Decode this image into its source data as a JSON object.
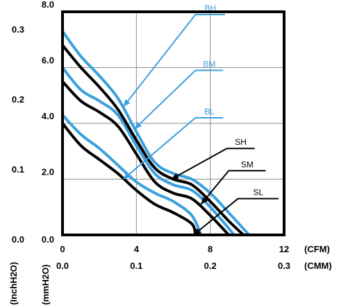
{
  "chart_data": {
    "type": "line",
    "title": "",
    "x_axis": {
      "primary": {
        "unit": "(CFM)",
        "range": [
          0,
          12
        ],
        "ticks": [
          "0",
          "4",
          "8",
          "12"
        ]
      },
      "secondary": {
        "unit": "(CMM)",
        "ticks": [
          "0.0",
          "0.1",
          "0.2",
          "0.3"
        ]
      }
    },
    "y_axis": {
      "primary": {
        "unit": "(mmH2O)",
        "range": [
          0,
          8
        ],
        "ticks": [
          "0.0",
          "2.0",
          "4.0",
          "6.0",
          "8.0"
        ]
      },
      "secondary": {
        "unit": "(InchH2O)",
        "ticks": [
          "0.0",
          "0.1",
          "0.2",
          "0.3"
        ]
      }
    },
    "grid": true,
    "legend": "inline-callouts",
    "series": [
      {
        "name": "BH",
        "color": "#3ba0de",
        "x": [
          0,
          1,
          2,
          3,
          4,
          5,
          6,
          7,
          8,
          9,
          10.1
        ],
        "y": [
          7.3,
          6.4,
          5.7,
          4.9,
          3.7,
          2.6,
          2.2,
          2.0,
          1.5,
          0.8,
          0
        ]
      },
      {
        "name": "BM",
        "color": "#3ba0de",
        "x": [
          0,
          1,
          2,
          3,
          4,
          5,
          6,
          7,
          8,
          9.3
        ],
        "y": [
          6.0,
          5.2,
          4.8,
          4.3,
          3.2,
          2.2,
          1.8,
          1.6,
          1.0,
          0
        ]
      },
      {
        "name": "BL",
        "color": "#3ba0de",
        "x": [
          0,
          1,
          2,
          3,
          4,
          5,
          6,
          7,
          7.5
        ],
        "y": [
          4.3,
          3.6,
          3.1,
          2.5,
          1.9,
          1.5,
          1.2,
          0.7,
          0
        ]
      },
      {
        "name": "SH",
        "color": "#000000",
        "x": [
          0,
          1,
          2,
          3,
          4,
          5,
          6,
          7,
          8,
          9,
          9.8
        ],
        "y": [
          6.8,
          6.0,
          5.3,
          4.5,
          3.4,
          2.4,
          2.0,
          1.8,
          1.2,
          0.5,
          0
        ]
      },
      {
        "name": "SM",
        "color": "#000000",
        "x": [
          0,
          1,
          2,
          3,
          4,
          5,
          6,
          7,
          8,
          9.0
        ],
        "y": [
          5.5,
          4.8,
          4.4,
          3.9,
          2.9,
          1.9,
          1.5,
          1.3,
          0.7,
          0
        ]
      },
      {
        "name": "SL",
        "color": "#000000",
        "x": [
          0,
          1,
          2,
          3,
          4,
          5,
          6,
          7,
          7.2
        ],
        "y": [
          4.0,
          3.2,
          2.7,
          2.2,
          1.6,
          1.1,
          0.8,
          0.4,
          0
        ]
      }
    ],
    "callouts": [
      {
        "label": "BH",
        "color": "#3ba0de",
        "tip": [
          3.3,
          4.6
        ],
        "elbow": [
          7.2,
          7.9
        ],
        "end": [
          8.8,
          7.9
        ]
      },
      {
        "label": "BM",
        "color": "#3ba0de",
        "tip": [
          3.9,
          3.8
        ],
        "elbow": [
          7.2,
          5.9
        ],
        "end": [
          8.7,
          5.9
        ]
      },
      {
        "label": "BL",
        "color": "#3ba0de",
        "tip": [
          3.3,
          2.0
        ],
        "elbow": [
          7.2,
          4.2
        ],
        "end": [
          8.7,
          4.2
        ]
      },
      {
        "label": "SH",
        "color": "#000000",
        "tip": [
          5.9,
          2.0
        ],
        "elbow": [
          8.9,
          3.1
        ],
        "end": [
          10.4,
          3.1
        ]
      },
      {
        "label": "SM",
        "color": "#000000",
        "tip": [
          7.5,
          1.1
        ],
        "elbow": [
          9.0,
          2.3
        ],
        "end": [
          11.0,
          2.3
        ]
      },
      {
        "label": "SL",
        "color": "#000000",
        "tip": [
          7.1,
          0.0
        ],
        "elbow": [
          9.5,
          1.3
        ],
        "end": [
          11.7,
          1.3
        ]
      }
    ]
  }
}
